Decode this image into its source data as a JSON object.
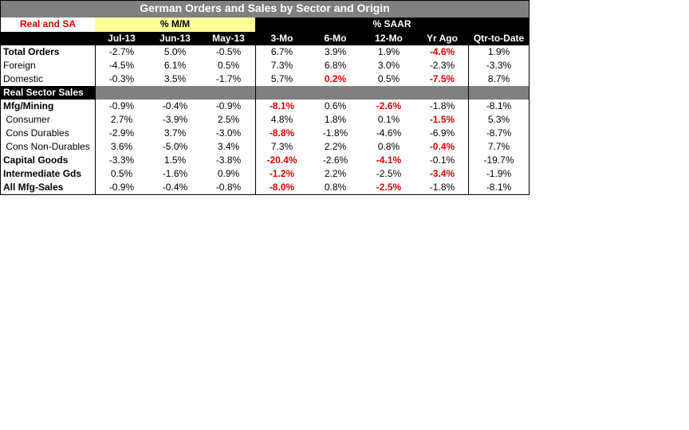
{
  "title": "German Orders and Sales by Sector and Origin",
  "corner_label": "Real and SA",
  "group_mm": "% M/M",
  "group_saar": "% SAAR",
  "columns": [
    "Jul-13",
    "Jun-13",
    "May-13",
    "3-Mo",
    "6-Mo",
    "12-Mo",
    "Yr Ago",
    "Qtr-to-Date"
  ],
  "section_label": "Real Sector Sales",
  "colors": {
    "negative_highlight": "#e00000",
    "title_bg": "#808080",
    "header_bg": "#000000",
    "mm_bg": "#ffff99"
  },
  "rows_orders": [
    {
      "label": "Total Orders",
      "bold": true,
      "values": [
        "-2.7%",
        "5.0%",
        "-0.5%",
        "6.7%",
        "3.9%",
        "1.9%",
        "-4.6%",
        "1.9%"
      ],
      "red": [
        false,
        false,
        false,
        false,
        false,
        false,
        true,
        false
      ]
    },
    {
      "label": "Foreign",
      "bold": false,
      "values": [
        "-4.5%",
        "6.1%",
        "0.5%",
        "7.3%",
        "6.8%",
        "3.0%",
        "-2.3%",
        "-3.3%"
      ],
      "red": [
        false,
        false,
        false,
        false,
        false,
        false,
        false,
        false
      ]
    },
    {
      "label": "Domestic",
      "bold": false,
      "values": [
        "-0.3%",
        "3.5%",
        "-1.7%",
        "5.7%",
        "0.2%",
        "0.5%",
        "-7.5%",
        "8.7%"
      ],
      "red": [
        false,
        false,
        false,
        false,
        true,
        false,
        true,
        false
      ]
    }
  ],
  "rows_sales": [
    {
      "label": "Mfg/Mining",
      "bold": true,
      "values": [
        "-0.9%",
        "-0.4%",
        "-0.9%",
        "-8.1%",
        "0.6%",
        "-2.6%",
        "-1.8%",
        "-8.1%"
      ],
      "red": [
        false,
        false,
        false,
        true,
        false,
        true,
        false,
        false
      ]
    },
    {
      "label": " Consumer",
      "bold": false,
      "values": [
        "2.7%",
        "-3.9%",
        "2.5%",
        "4.8%",
        "1.8%",
        "0.1%",
        "-1.5%",
        "5.3%"
      ],
      "red": [
        false,
        false,
        false,
        false,
        false,
        false,
        true,
        false
      ]
    },
    {
      "label": " Cons Durables",
      "bold": false,
      "values": [
        "-2.9%",
        "3.7%",
        "-3.0%",
        "-8.8%",
        "-1.8%",
        "-4.6%",
        "-6.9%",
        "-8.7%"
      ],
      "red": [
        false,
        false,
        false,
        true,
        false,
        false,
        false,
        false
      ]
    },
    {
      "label": " Cons Non-Durables",
      "bold": false,
      "values": [
        "3.6%",
        "-5.0%",
        "3.4%",
        "7.3%",
        "2.2%",
        "0.8%",
        "-0.4%",
        "7.7%"
      ],
      "red": [
        false,
        false,
        false,
        false,
        false,
        false,
        true,
        false
      ]
    },
    {
      "label": "Capital Goods",
      "bold": true,
      "values": [
        "-3.3%",
        "1.5%",
        "-3.8%",
        "-20.4%",
        "-2.6%",
        "-4.1%",
        "-0.1%",
        "-19.7%"
      ],
      "red": [
        false,
        false,
        false,
        true,
        false,
        true,
        false,
        false
      ]
    },
    {
      "label": "Intermediate Gds",
      "bold": true,
      "values": [
        "0.5%",
        "-1.6%",
        "0.9%",
        "-1.2%",
        "2.2%",
        "-2.5%",
        "-3.4%",
        "-1.9%"
      ],
      "red": [
        false,
        false,
        false,
        true,
        false,
        false,
        true,
        false
      ]
    },
    {
      "label": "All Mfg-Sales",
      "bold": true,
      "values": [
        "-0.9%",
        "-0.4%",
        "-0.8%",
        "-8.0%",
        "0.8%",
        "-2.5%",
        "-1.8%",
        "-8.1%"
      ],
      "red": [
        false,
        false,
        false,
        true,
        false,
        true,
        false,
        false
      ]
    }
  ]
}
